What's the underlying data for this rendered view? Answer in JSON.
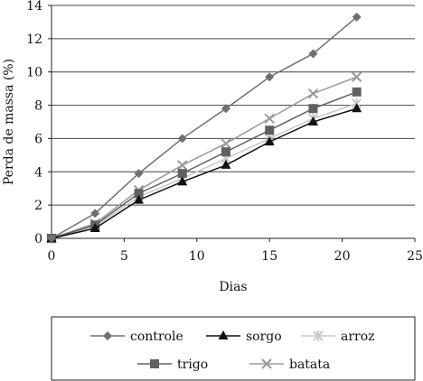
{
  "chart_data": {
    "type": "line",
    "xlabel": "Dias",
    "ylabel": "Perda de massa (%)",
    "xlim": [
      0,
      25
    ],
    "ylim": [
      0,
      14
    ],
    "xticks": [
      0,
      5,
      10,
      15,
      20,
      25
    ],
    "yticks": [
      0,
      2,
      4,
      6,
      8,
      10,
      12,
      14
    ],
    "grid": "horizontal",
    "legend_position": "bottom",
    "x": [
      0,
      3,
      6,
      9,
      12,
      15,
      18,
      21
    ],
    "series": [
      {
        "name": "controle",
        "marker": "diamond",
        "color": "#707070",
        "values": [
          0,
          1.5,
          3.9,
          6.0,
          7.8,
          9.7,
          11.1,
          13.3
        ]
      },
      {
        "name": "sorgo",
        "marker": "triangle",
        "color": "#111111",
        "values": [
          0,
          0.6,
          2.3,
          3.4,
          4.4,
          5.8,
          7.0,
          7.8
        ]
      },
      {
        "name": "arroz",
        "marker": "asterisk",
        "color": "#c8c8c8",
        "values": [
          0,
          0.7,
          2.5,
          3.6,
          4.8,
          6.0,
          7.2,
          8.1
        ]
      },
      {
        "name": "trigo",
        "marker": "square",
        "color": "#606060",
        "values": [
          0,
          0.8,
          2.7,
          3.9,
          5.2,
          6.5,
          7.8,
          8.8
        ]
      },
      {
        "name": "batata",
        "marker": "x",
        "color": "#9a9a9a",
        "values": [
          0,
          0.9,
          2.9,
          4.4,
          5.7,
          7.2,
          8.7,
          9.7
        ]
      }
    ],
    "legend_rows": [
      [
        "controle",
        "sorgo",
        "arroz"
      ],
      [
        "trigo",
        "batata"
      ]
    ]
  }
}
